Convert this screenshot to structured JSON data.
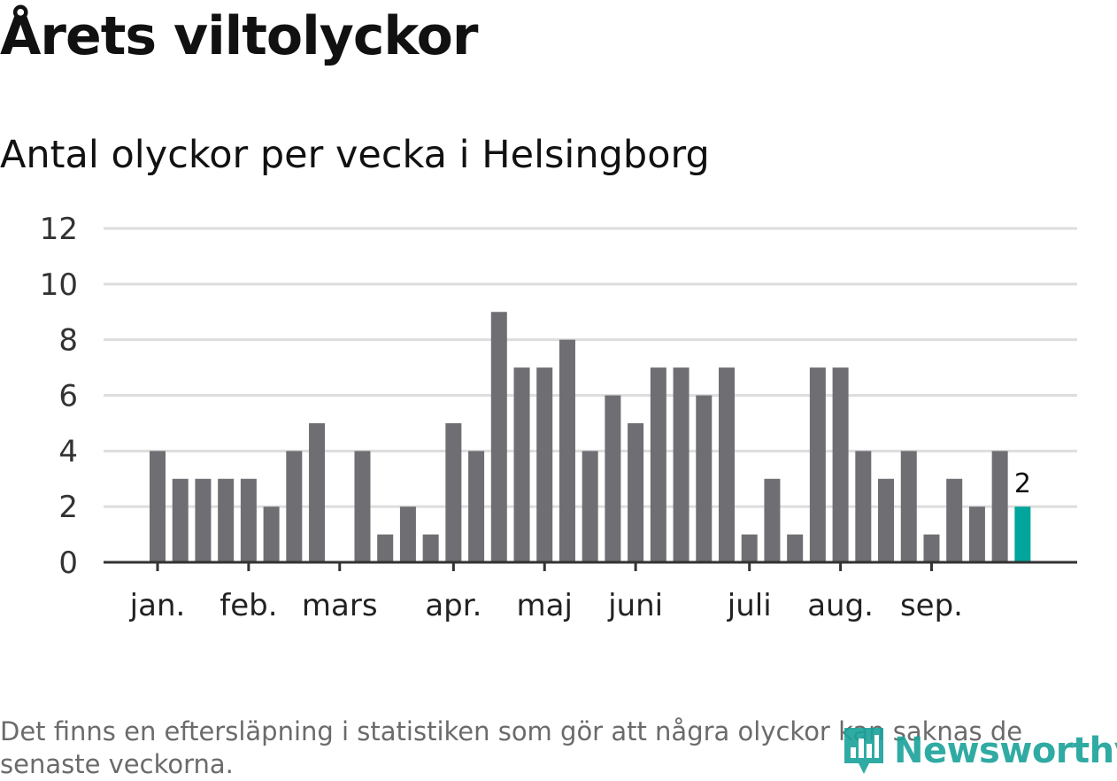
{
  "title": "Årets viltolyckor",
  "subtitle": "Antal olyckor per vecka i Helsingborg",
  "note": "Det finns en eftersläpning i statistiken som gör att några olyckor kan saknas de senaste veckorna.",
  "brand": {
    "name": "Newsworthy",
    "color": "#1aa39a",
    "icon": "bar-chart-pin-icon"
  },
  "colors": {
    "bar": "#6f6e73",
    "highlight": "#00a69c",
    "grid": "#dddddd",
    "axis": "#333333"
  },
  "chart_data": {
    "type": "bar",
    "title": "Årets viltolyckor",
    "subtitle": "Antal olyckor per vecka i Helsingborg",
    "xlabel": "",
    "ylabel": "",
    "ylim": [
      0,
      12
    ],
    "yticks": [
      0,
      2,
      4,
      6,
      8,
      10,
      12
    ],
    "grid": true,
    "legend": "none",
    "weeks": [
      1,
      2,
      3,
      4,
      5,
      6,
      7,
      8,
      9,
      10,
      11,
      12,
      13,
      14,
      15,
      16,
      17,
      18,
      19,
      20,
      21,
      22,
      23,
      24,
      25,
      26,
      27,
      28,
      29,
      30,
      31,
      32,
      33,
      34,
      35,
      36,
      37,
      38,
      39
    ],
    "values": [
      4,
      3,
      3,
      3,
      3,
      2,
      4,
      5,
      0,
      4,
      1,
      2,
      1,
      5,
      4,
      9,
      7,
      7,
      8,
      4,
      6,
      5,
      7,
      7,
      6,
      7,
      1,
      3,
      1,
      7,
      7,
      4,
      3,
      4,
      1,
      3,
      2,
      4,
      2
    ],
    "highlight_index": 38,
    "annotations": [
      {
        "index": 38,
        "text": "2"
      }
    ],
    "months": [
      {
        "label": "jan.",
        "week": 1
      },
      {
        "label": "feb.",
        "week": 5
      },
      {
        "label": "mars",
        "week": 9
      },
      {
        "label": "apr.",
        "week": 14
      },
      {
        "label": "maj",
        "week": 18
      },
      {
        "label": "juni",
        "week": 22
      },
      {
        "label": "juli",
        "week": 27
      },
      {
        "label": "aug.",
        "week": 31
      },
      {
        "label": "sep.",
        "week": 35
      }
    ]
  }
}
